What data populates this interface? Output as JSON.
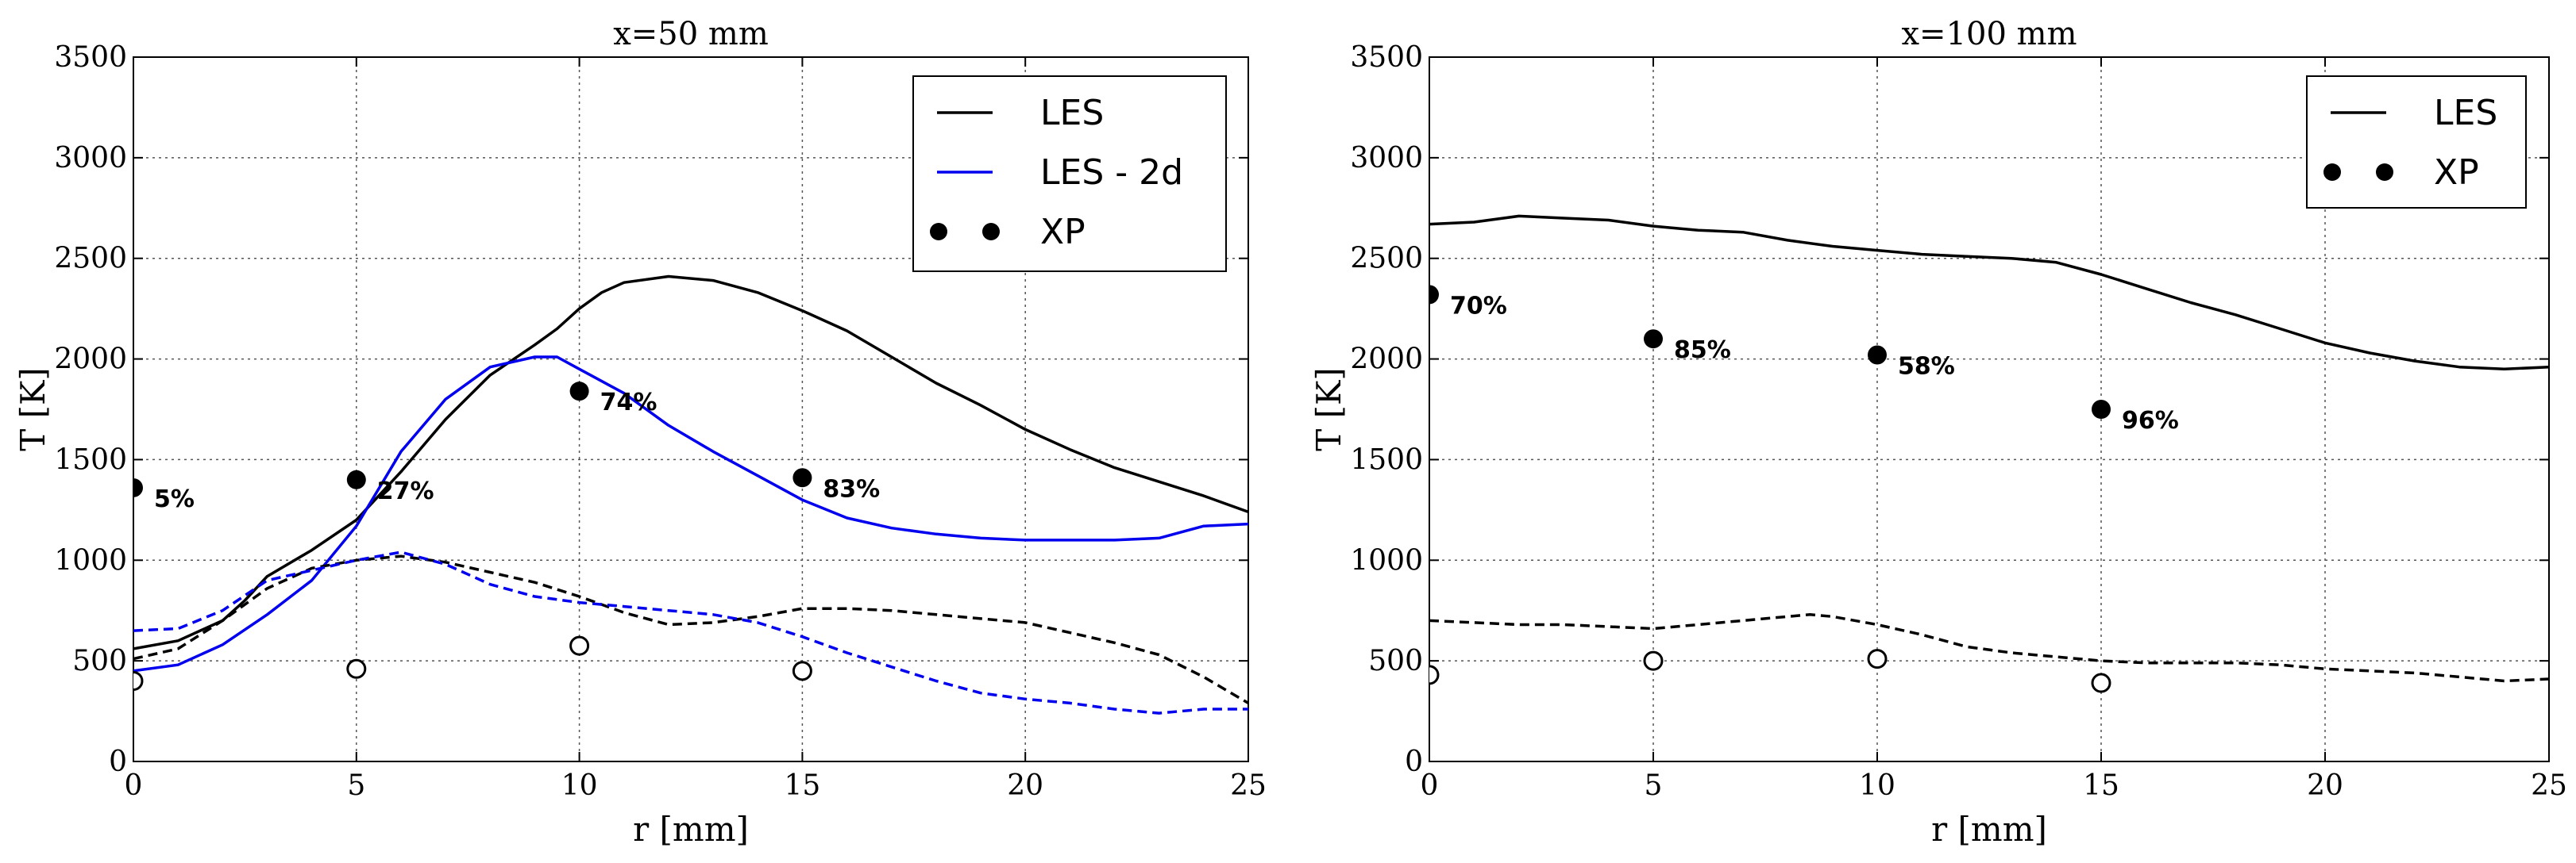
{
  "chart_data": [
    {
      "type": "line",
      "title": "x=50 mm",
      "xlabel": "r [mm]",
      "ylabel": "T [K]",
      "xlim": [
        0,
        25
      ],
      "ylim": [
        0,
        3500
      ],
      "xticks": [
        0,
        5,
        10,
        15,
        20,
        25
      ],
      "yticks": [
        0,
        500,
        1000,
        1500,
        2000,
        2500,
        3000,
        3500
      ],
      "grid": true,
      "legend_position": "top-right",
      "legend": [
        {
          "label": "LES",
          "color": "#000000",
          "marker": "line"
        },
        {
          "label": "LES - 2d",
          "color": "#0000ee",
          "marker": "line"
        },
        {
          "label": "XP",
          "color": "#000000",
          "marker": "dots"
        }
      ],
      "series": [
        {
          "name": "LES",
          "style": "solid",
          "color": "#000000",
          "x": [
            0,
            1,
            2,
            2.5,
            3,
            4,
            5,
            6,
            7,
            8,
            9,
            9.5,
            10,
            10.5,
            11,
            12,
            13,
            14,
            15,
            16,
            17,
            18,
            19,
            20,
            21,
            22,
            23,
            24,
            25
          ],
          "y": [
            560,
            600,
            700,
            800,
            920,
            1050,
            1200,
            1440,
            1700,
            1920,
            2070,
            2150,
            2250,
            2330,
            2380,
            2410,
            2390,
            2330,
            2240,
            2140,
            2010,
            1880,
            1770,
            1650,
            1550,
            1460,
            1390,
            1320,
            1240
          ]
        },
        {
          "name": "LES - 2d",
          "style": "solid",
          "color": "#0000ee",
          "x": [
            0,
            1,
            2,
            3,
            4,
            5,
            6,
            7,
            8,
            9,
            9.5,
            10,
            11,
            12,
            13,
            14,
            15,
            16,
            17,
            18,
            19,
            20,
            21,
            22,
            23,
            24,
            25
          ],
          "y": [
            450,
            480,
            580,
            730,
            900,
            1170,
            1540,
            1800,
            1960,
            2010,
            2010,
            1950,
            1830,
            1670,
            1540,
            1420,
            1300,
            1210,
            1160,
            1130,
            1110,
            1100,
            1100,
            1100,
            1110,
            1170,
            1180
          ]
        },
        {
          "name": "LES (dashed)",
          "style": "dashed",
          "color": "#000000",
          "x": [
            0,
            1,
            2,
            3,
            4,
            5,
            6,
            7,
            8,
            9,
            10,
            11,
            12,
            13,
            14,
            15,
            16,
            17,
            18,
            19,
            20,
            21,
            22,
            23,
            24,
            25
          ],
          "y": [
            510,
            560,
            700,
            860,
            960,
            1000,
            1020,
            990,
            940,
            890,
            820,
            740,
            680,
            690,
            720,
            760,
            760,
            750,
            730,
            710,
            690,
            640,
            590,
            530,
            420,
            290
          ]
        },
        {
          "name": "LES - 2d (dashed)",
          "style": "dashed",
          "color": "#0000ee",
          "x": [
            0,
            1,
            2,
            3,
            4,
            5,
            6,
            7,
            8,
            9,
            10,
            11,
            12,
            13,
            14,
            15,
            16,
            17,
            18,
            19,
            20,
            21,
            22,
            23,
            24,
            25
          ],
          "y": [
            650,
            660,
            750,
            900,
            950,
            1000,
            1040,
            980,
            880,
            820,
            790,
            770,
            750,
            730,
            690,
            620,
            540,
            470,
            400,
            340,
            310,
            290,
            260,
            240,
            260,
            260
          ]
        }
      ],
      "points_filled": [
        {
          "x": 0,
          "y": 1360,
          "label": "5%"
        },
        {
          "x": 5,
          "y": 1400,
          "label": "27%"
        },
        {
          "x": 10,
          "y": 1840,
          "label": "74%"
        },
        {
          "x": 15,
          "y": 1410,
          "label": "83%"
        }
      ],
      "points_open": [
        {
          "x": 0,
          "y": 400
        },
        {
          "x": 5,
          "y": 460
        },
        {
          "x": 10,
          "y": 575
        },
        {
          "x": 15,
          "y": 450
        }
      ]
    },
    {
      "type": "line",
      "title": "x=100 mm",
      "xlabel": "r [mm]",
      "ylabel": "T [K]",
      "xlim": [
        0,
        25
      ],
      "ylim": [
        0,
        3500
      ],
      "xticks": [
        0,
        5,
        10,
        15,
        20,
        25
      ],
      "yticks": [
        0,
        500,
        1000,
        1500,
        2000,
        2500,
        3000,
        3500
      ],
      "grid": true,
      "legend_position": "top-right",
      "legend": [
        {
          "label": "LES",
          "color": "#000000",
          "marker": "line"
        },
        {
          "label": "XP",
          "color": "#000000",
          "marker": "dots"
        }
      ],
      "series": [
        {
          "name": "LES",
          "style": "solid",
          "color": "#000000",
          "x": [
            0,
            1,
            2,
            3,
            4,
            5,
            6,
            7,
            8,
            9,
            10,
            11,
            12,
            13,
            14,
            15,
            16,
            17,
            18,
            19,
            20,
            21,
            22,
            23,
            24,
            25
          ],
          "y": [
            2670,
            2680,
            2710,
            2700,
            2690,
            2660,
            2640,
            2630,
            2590,
            2560,
            2540,
            2520,
            2510,
            2500,
            2480,
            2420,
            2350,
            2280,
            2220,
            2150,
            2080,
            2030,
            1990,
            1960,
            1950,
            1960
          ]
        },
        {
          "name": "LES (dashed)",
          "style": "dashed",
          "color": "#000000",
          "x": [
            0,
            1,
            2,
            3,
            4,
            5,
            6,
            7,
            8,
            8.5,
            9,
            10,
            11,
            12,
            13,
            14,
            15,
            16,
            17,
            18,
            19,
            20,
            21,
            22,
            23,
            24,
            25
          ],
          "y": [
            700,
            690,
            680,
            680,
            670,
            660,
            680,
            700,
            720,
            730,
            720,
            680,
            630,
            570,
            540,
            520,
            500,
            490,
            490,
            490,
            480,
            460,
            450,
            440,
            420,
            400,
            410
          ]
        }
      ],
      "points_filled": [
        {
          "x": 0,
          "y": 2320,
          "label": "70%"
        },
        {
          "x": 5,
          "y": 2100,
          "label": "85%"
        },
        {
          "x": 10,
          "y": 2020,
          "label": "58%"
        },
        {
          "x": 15,
          "y": 1750,
          "label": "96%"
        }
      ],
      "points_open": [
        {
          "x": 0,
          "y": 430
        },
        {
          "x": 5,
          "y": 500
        },
        {
          "x": 10,
          "y": 510
        },
        {
          "x": 15,
          "y": 390
        }
      ]
    }
  ]
}
